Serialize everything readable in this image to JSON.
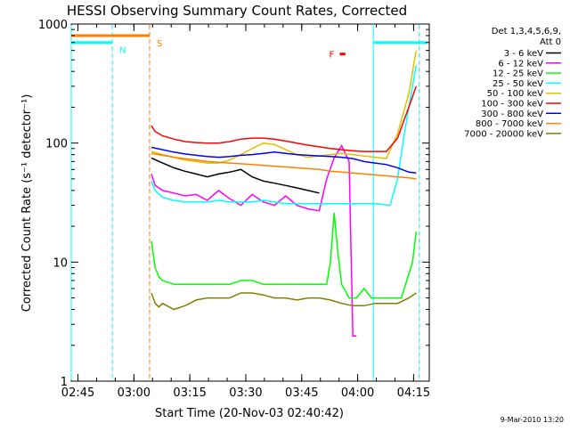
{
  "chart_data": {
    "type": "line",
    "title": "HESSI Observing Summary Count Rates, Corrected",
    "xlabel": "Start Time (20-Nov-03 02:40:42)",
    "ylabel": "Corrected Count Rate (s⁻¹ detector⁻¹)",
    "y_scale": "log",
    "ylim": [
      1,
      1000
    ],
    "xlim_minutes": [
      2.5,
      98.5
    ],
    "x_ticks": [
      {
        "minute": 4.3,
        "label": "02:45"
      },
      {
        "minute": 19.3,
        "label": "03:00"
      },
      {
        "minute": 34.3,
        "label": "03:15"
      },
      {
        "minute": 49.3,
        "label": "03:30"
      },
      {
        "minute": 64.3,
        "label": "03:45"
      },
      {
        "minute": 79.3,
        "label": "04:00"
      },
      {
        "minute": 94.3,
        "label": "04:15"
      }
    ],
    "y_ticks": [
      {
        "value": 1,
        "label": "1"
      },
      {
        "value": 10,
        "label": "10"
      },
      {
        "value": 100,
        "label": "100"
      },
      {
        "value": 1000,
        "label": "1000"
      }
    ],
    "legend_header": [
      "Det 1,3,4,5,6,9,",
      "Att 0"
    ],
    "legend_position": "right",
    "series": [
      {
        "name": "3 - 6 keV",
        "color": "#000000",
        "x": [
          24,
          27,
          30,
          33,
          36,
          39,
          42,
          45,
          48,
          51,
          54,
          57,
          60,
          63,
          66,
          69
        ],
        "y": [
          75,
          68,
          62,
          58,
          55,
          52,
          55,
          57,
          60,
          52,
          48,
          46,
          44,
          42,
          40,
          38
        ]
      },
      {
        "name": "6 - 12 keV",
        "color": "#ff00ff",
        "x": [
          24,
          25,
          27,
          30,
          33,
          36,
          39,
          42,
          45,
          48,
          51,
          54,
          57,
          60,
          63,
          66,
          69,
          71,
          73,
          75,
          77,
          78,
          79
        ],
        "y": [
          55,
          44,
          40,
          38,
          36,
          37,
          33,
          40,
          34,
          30,
          37,
          32,
          30,
          36,
          30,
          28,
          27,
          50,
          75,
          95,
          70,
          2.4,
          2.4
        ]
      },
      {
        "name": "12 - 25 keV",
        "color": "#00ff00",
        "x": [
          24,
          25,
          26,
          27,
          30,
          33,
          36,
          39,
          42,
          45,
          48,
          51,
          54,
          57,
          60,
          63,
          66,
          69,
          71,
          72,
          73,
          74,
          75,
          77,
          79,
          81,
          83,
          85,
          88,
          91,
          94,
          95
        ],
        "y": [
          15,
          9,
          7.5,
          7,
          6.5,
          6.5,
          6.5,
          6.5,
          6.5,
          6.5,
          7,
          7,
          6.5,
          6.5,
          6.5,
          6.5,
          6.5,
          6.5,
          6.5,
          10,
          26,
          12,
          6.5,
          5,
          5,
          6,
          5,
          5,
          5,
          5,
          10,
          18
        ]
      },
      {
        "name": "25 - 50 keV",
        "color": "#00ffff",
        "x": [
          24,
          25,
          27,
          30,
          33,
          36,
          39,
          42,
          45,
          48,
          51,
          54,
          57,
          60,
          63,
          66,
          69,
          72,
          75,
          78,
          80,
          84,
          88,
          90,
          92,
          95
        ],
        "y": [
          48,
          40,
          35,
          33,
          32,
          32,
          32,
          33,
          32,
          32,
          32,
          33,
          32,
          31,
          31,
          31,
          31,
          31,
          31,
          31,
          31,
          31,
          30,
          50,
          130,
          450
        ]
      },
      {
        "name": "50 - 100 keV",
        "color": "#e0c000",
        "x": [
          24,
          27,
          30,
          33,
          36,
          39,
          42,
          45,
          48,
          51,
          54,
          57,
          60,
          63,
          66,
          69,
          72,
          75,
          78,
          81,
          84,
          87,
          90,
          93,
          95
        ],
        "y": [
          85,
          80,
          76,
          72,
          70,
          68,
          68,
          72,
          80,
          90,
          100,
          97,
          88,
          80,
          76,
          78,
          80,
          82,
          80,
          78,
          76,
          74,
          120,
          260,
          600
        ]
      },
      {
        "name": "100 - 300 keV",
        "color": "#ff0000",
        "x": [
          24,
          25,
          27,
          30,
          33,
          36,
          39,
          42,
          45,
          48,
          51,
          54,
          57,
          60,
          63,
          66,
          69,
          72,
          75,
          78,
          81,
          84,
          87,
          90,
          93,
          95
        ],
        "y": [
          140,
          125,
          115,
          108,
          103,
          101,
          100,
          100,
          103,
          108,
          110,
          110,
          108,
          104,
          100,
          96,
          93,
          90,
          88,
          86,
          85,
          85,
          85,
          110,
          200,
          300
        ]
      },
      {
        "name": "300 - 800 keV",
        "color": "#0000ff",
        "x": [
          24,
          27,
          30,
          33,
          36,
          39,
          42,
          45,
          48,
          51,
          54,
          57,
          60,
          63,
          66,
          69,
          72,
          75,
          78,
          81,
          84,
          87,
          90,
          93,
          95
        ],
        "y": [
          92,
          88,
          84,
          81,
          79,
          77,
          76,
          77,
          79,
          80,
          82,
          84,
          82,
          80,
          79,
          78,
          77,
          76,
          74,
          70,
          68,
          66,
          62,
          57,
          56
        ]
      },
      {
        "name": "800 - 7000 keV",
        "color": "#ff8000",
        "x": [
          24,
          27,
          30,
          33,
          36,
          39,
          42,
          45,
          48,
          51,
          54,
          57,
          60,
          63,
          66,
          69,
          72,
          75,
          78,
          81,
          84,
          87,
          90,
          93,
          95
        ],
        "y": [
          82,
          79,
          76,
          74,
          72,
          70,
          69,
          68,
          67,
          66,
          65,
          64,
          63,
          62,
          61,
          60,
          58,
          57,
          56,
          55,
          54,
          53,
          52,
          51,
          50
        ]
      },
      {
        "name": "7000 - 20000 keV",
        "color": "#808000",
        "x": [
          24,
          25,
          26,
          27,
          30,
          33,
          36,
          39,
          42,
          45,
          48,
          51,
          54,
          57,
          60,
          63,
          66,
          69,
          72,
          75,
          78,
          81,
          84,
          87,
          90,
          93,
          95
        ],
        "y": [
          5.5,
          4.5,
          4.2,
          4.5,
          4,
          4.3,
          4.8,
          5,
          5,
          5,
          5.5,
          5.5,
          5.3,
          5,
          5,
          4.8,
          5,
          5,
          4.8,
          4.5,
          4.3,
          4.3,
          4.5,
          4.5,
          4.5,
          5,
          5.5
        ]
      }
    ],
    "annotations": [
      {
        "label": "N",
        "color": "#00ffff",
        "x": [
          2.5,
          13.5
        ],
        "y": 700
      },
      {
        "label": "S",
        "color": "#ff8000",
        "x": [
          2.5,
          23.5
        ],
        "y": 800
      },
      {
        "label": "F",
        "color": "#ff0000",
        "x": [
          74.5,
          76
        ],
        "y": 560
      },
      {
        "label": "",
        "color": "#00ffff",
        "x": [
          83.5,
          98
        ],
        "y": 700
      }
    ],
    "vertical_markers": [
      {
        "minute": 2.5,
        "color": "#00ffff",
        "style": "solid"
      },
      {
        "minute": 13.5,
        "color": "#00ffff",
        "style": "dashed"
      },
      {
        "minute": 23.5,
        "color": "#ff8000",
        "style": "dashed"
      },
      {
        "minute": 83.5,
        "color": "#00ffff",
        "style": "solid"
      },
      {
        "minute": 95.8,
        "color": "#00ffff",
        "style": "dashed"
      }
    ],
    "footer_date": "9-Mar-2010 13:20"
  }
}
